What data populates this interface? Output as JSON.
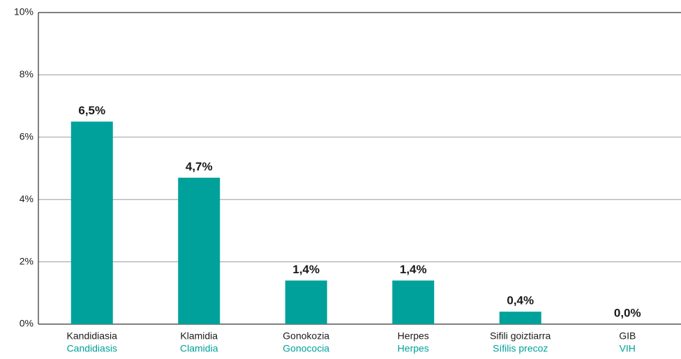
{
  "chart_data": {
    "type": "bar",
    "categories": [
      "Kandidiasia",
      "Klamidia",
      "Gonokozia",
      "Herpes",
      "Sifili goiztiarra",
      "GIB"
    ],
    "secondary_categories": [
      "Candidiasis",
      "Clamidia",
      "Gonococia",
      "Herpes",
      "Sífilis precoz",
      "VIH"
    ],
    "values": [
      6.5,
      4.7,
      1.4,
      1.4,
      0.4,
      0.0
    ],
    "value_labels": [
      "6,5%",
      "4,7%",
      "1,4%",
      "1,4%",
      "0,4%",
      "0,0%"
    ],
    "color": "#00a19a",
    "secondary_color": "#00a19a",
    "ylim": [
      0,
      10
    ],
    "yticks": [
      {
        "value": 0,
        "label": "0%"
      },
      {
        "value": 2,
        "label": "2%"
      },
      {
        "value": 4,
        "label": "4%"
      },
      {
        "value": 6,
        "label": "6%"
      },
      {
        "value": 8,
        "label": "8%"
      },
      {
        "value": 10,
        "label": "10%"
      }
    ],
    "grid": true
  }
}
